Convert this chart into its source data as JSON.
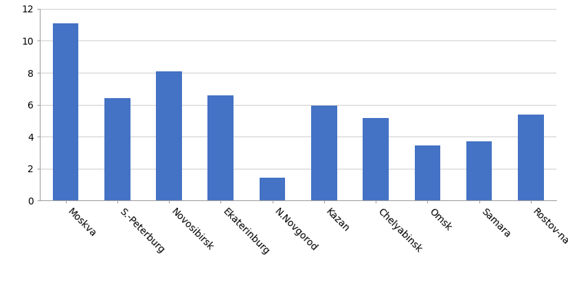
{
  "categories": [
    "Moskva",
    "S.-Peterburg",
    "Novosibirsk",
    "Ekaterinburg",
    "N.Novgorod",
    "Kazan",
    "Chelyabinsk",
    "Omsk",
    "Samara",
    "Rostov-na-Donu"
  ],
  "values": [
    11.1,
    6.4,
    8.1,
    6.6,
    1.45,
    5.95,
    5.15,
    3.45,
    3.7,
    5.4
  ],
  "bar_color": "#4472C4",
  "ylim": [
    0,
    12
  ],
  "yticks": [
    0,
    2,
    4,
    6,
    8,
    10,
    12
  ],
  "background_color": "#ffffff",
  "grid_color": "#d0d0d0",
  "tick_label_fontsize": 10,
  "axis_label_color": "#000000",
  "bar_width": 0.5
}
